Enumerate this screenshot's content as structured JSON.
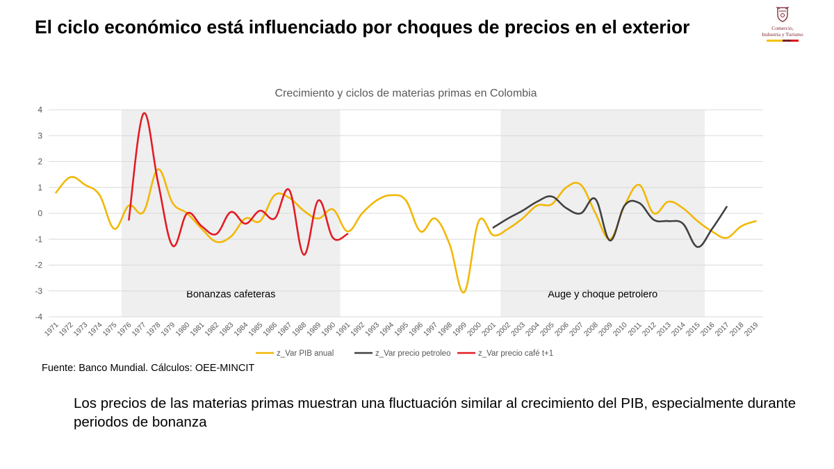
{
  "slide": {
    "title": "El ciclo económico está influenciado por choques de precios en el exterior",
    "logo": {
      "line1": "Comercio,",
      "line2": "Industria y Turismo",
      "flag_colors": [
        "#f2c200",
        "#7a1f2b",
        "#e30613"
      ]
    },
    "source": "Fuente: Banco Mundial. Cálculos: OEE-MINCIT",
    "caption": "Los precios de las materias primas muestran una fluctuación similar al crecimiento del PIB, especialmente durante periodos de bonanza"
  },
  "chart_data": {
    "type": "line",
    "title": "Crecimiento y ciclos de materias primas en Colombia",
    "xlabel": "",
    "ylabel": "",
    "ylim": [
      -4,
      4
    ],
    "yticks": [
      4,
      3,
      2,
      1,
      0,
      -1,
      -2,
      -3,
      -4
    ],
    "grid": true,
    "legend_position": "bottom",
    "categories": [
      "1971",
      "1972",
      "1973",
      "1974",
      "1975",
      "1976",
      "1977",
      "1978",
      "1979",
      "1980",
      "1981",
      "1982",
      "1983",
      "1984",
      "1985",
      "1986",
      "1987",
      "1988",
      "1989",
      "1990",
      "1991",
      "1992",
      "1993",
      "1994",
      "1995",
      "1996",
      "1997",
      "1998",
      "1999",
      "2000",
      "2001",
      "2002",
      "2003",
      "2004",
      "2005",
      "2006",
      "2007",
      "2008",
      "2009",
      "2010",
      "2011",
      "2012",
      "2013",
      "2014",
      "2015",
      "2016",
      "2017",
      "2018",
      "2019"
    ],
    "shaded_regions": [
      {
        "from": "1976",
        "to": "1990",
        "label": "Bonanzas cafeteras",
        "color": "#efefef"
      },
      {
        "from": "2002",
        "to": "2015",
        "label": "Auge y choque petrolero",
        "color": "#efefef"
      }
    ],
    "series": [
      {
        "name": "z_Var PIB anual",
        "color": "#f2b705",
        "values": [
          0.8,
          1.4,
          1.1,
          0.7,
          -0.6,
          0.3,
          0.05,
          1.7,
          0.4,
          0.0,
          -0.6,
          -1.1,
          -0.9,
          -0.2,
          -0.3,
          0.7,
          0.6,
          0.1,
          -0.2,
          0.15,
          -0.7,
          0.0,
          0.5,
          0.7,
          0.5,
          -0.7,
          -0.2,
          -1.2,
          -3.05,
          -0.3,
          -0.85,
          -0.6,
          -0.2,
          0.3,
          0.35,
          1.0,
          1.1,
          0.0,
          -1.0,
          0.3,
          1.1,
          0.0,
          0.45,
          0.2,
          -0.3,
          -0.7,
          -0.95,
          -0.5,
          -0.3
        ]
      },
      {
        "name": "z_Var precio petroleo",
        "color": "#404040",
        "values": [
          null,
          null,
          null,
          null,
          null,
          null,
          null,
          null,
          null,
          null,
          null,
          null,
          null,
          null,
          null,
          null,
          null,
          null,
          null,
          null,
          null,
          null,
          null,
          null,
          null,
          null,
          null,
          null,
          null,
          null,
          -0.55,
          -0.2,
          0.1,
          0.45,
          0.65,
          0.2,
          0.0,
          0.55,
          -1.05,
          0.3,
          0.4,
          -0.25,
          -0.3,
          -0.4,
          -1.3,
          -0.6,
          0.25,
          null,
          null
        ]
      },
      {
        "name": "z_Var precio café t+1",
        "color": "#e31b23",
        "values": [
          null,
          null,
          null,
          null,
          null,
          -0.25,
          3.85,
          1.2,
          -1.25,
          0.0,
          -0.5,
          -0.8,
          0.05,
          -0.4,
          0.1,
          -0.2,
          0.9,
          -1.6,
          0.5,
          -0.95,
          -0.8,
          null,
          null,
          null,
          null,
          null,
          null,
          null,
          null,
          null,
          null,
          null,
          null,
          null,
          null,
          null,
          null,
          null,
          null,
          null,
          null,
          null,
          null,
          null,
          null,
          null,
          null,
          null,
          null
        ]
      }
    ]
  }
}
